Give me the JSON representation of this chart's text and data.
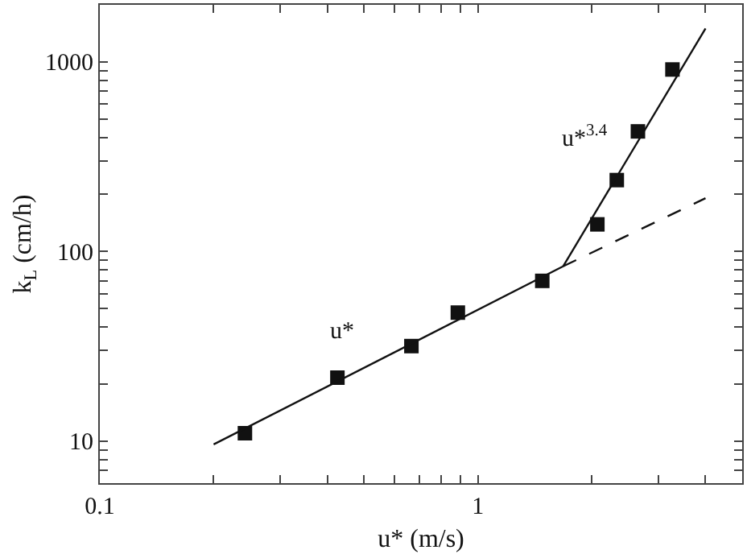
{
  "chart_data": {
    "type": "scatter",
    "xlabel": "u* (m/s)",
    "ylabel": "k$_{L}$ (cm/h)",
    "log": "xy",
    "legend": false,
    "xlim": [
      0.1,
      5
    ],
    "ylim": [
      6,
      2000
    ],
    "xticks": [
      0.1,
      {
        "value": 0.2,
        "label": null
      },
      {
        "value": 0.3,
        "label": null
      },
      {
        "value": 0.4,
        "label": null
      },
      {
        "value": 0.5,
        "label": null
      },
      {
        "value": 0.6,
        "label": null
      },
      {
        "value": 0.7,
        "label": null
      },
      {
        "value": 0.8,
        "label": null
      },
      {
        "value": 0.9,
        "label": null
      },
      1,
      {
        "value": 2,
        "label": null
      },
      {
        "value": 3,
        "label": null
      },
      {
        "value": 4,
        "label": null
      },
      {
        "value": 5,
        "label": null
      }
    ],
    "yticks": [
      {
        "value": 6,
        "label": null
      },
      {
        "value": 7,
        "label": null
      },
      {
        "value": 8,
        "label": null
      },
      {
        "value": 9,
        "label": null
      },
      10,
      {
        "value": 20,
        "label": null
      },
      {
        "value": 30,
        "label": null
      },
      {
        "value": 40,
        "label": null
      },
      {
        "value": 50,
        "label": null
      },
      {
        "value": 60,
        "label": null
      },
      {
        "value": 70,
        "label": null
      },
      {
        "value": 80,
        "label": null
      },
      {
        "value": 90,
        "label": null
      },
      100,
      {
        "value": 200,
        "label": null
      },
      {
        "value": 300,
        "label": null
      },
      {
        "value": 400,
        "label": null
      },
      {
        "value": 500,
        "label": null
      },
      {
        "value": 600,
        "label": null
      },
      {
        "value": 700,
        "label": null
      },
      {
        "value": 800,
        "label": null
      },
      {
        "value": 900,
        "label": null
      },
      1000,
      {
        "value": 2000,
        "label": null
      }
    ],
    "series": [
      {
        "marker": "square",
        "color": "#111111",
        "x": [
          0.242,
          0.425,
          0.667,
          0.885,
          1.48,
          2.07,
          2.33,
          2.65,
          3.27
        ],
        "values": [
          11,
          21.6,
          31.7,
          47.6,
          70,
          139,
          238,
          430,
          912
        ]
      },
      {
        "type": "line",
        "line_style": "solid",
        "color": "#111111",
        "x": [
          0.2,
          1.68
        ],
        "values": [
          9.6,
          83.5
        ]
      },
      {
        "type": "line",
        "line_style": "dashed",
        "color": "#111111",
        "x": [
          1.68,
          4
        ],
        "values": [
          83.5,
          191
        ]
      },
      {
        "type": "line",
        "line_style": "solid",
        "color": "#111111",
        "x": [
          1.68,
          4
        ],
        "values": [
          83.5,
          1500
        ]
      }
    ],
    "annotations": [
      {
        "text": "u*",
        "x": 0.5,
        "y": 24.4
      },
      {
        "text": "u*$^{3.4}$",
        "x": 2.35,
        "y": 256
      }
    ]
  }
}
